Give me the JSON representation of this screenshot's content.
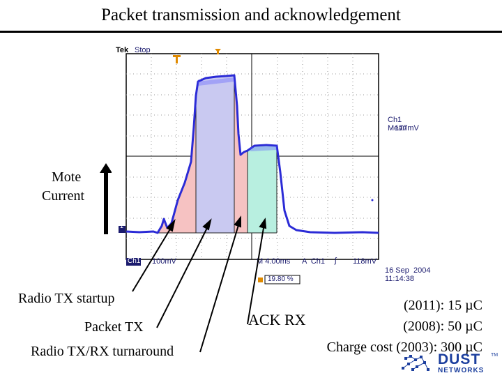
{
  "slide": {
    "title": "Packet transmission and acknowledgement",
    "axis_label_line1": "Mote",
    "axis_label_line2": "Current"
  },
  "scope": {
    "brand": "Tek",
    "state": "Stop",
    "ch1_mean_label": "Ch1 Mean",
    "ch1_mean_value": "177mV",
    "ch1_label": "Ch1",
    "volts_per_div": "100mV",
    "timebase": "M 4.00ms",
    "trigger_channel": "A  Ch1",
    "trigger_symbol": "ʃ",
    "trigger_level": "118mV",
    "trigger_position": "19.80 %",
    "date": "16 Sep  2004",
    "time": "11:14:38",
    "marker_1": "1",
    "colors": {
      "trace": "#2b2bd6",
      "startup": "#f6c2c2",
      "packet": "#c9c9f1",
      "turnaround": "#f6c2c2",
      "ack": "#b8efe0"
    }
  },
  "annotations": {
    "radio_tx_startup": "Radio TX startup",
    "packet_tx": "Packet TX",
    "turnaround": "Radio TX/RX turnaround",
    "ack_rx": "ACK RX",
    "charge_2011": "(2011): 15 µC",
    "charge_2008": "(2008): 50 µC",
    "charge_2003": "Charge cost (2003): 300 µC"
  },
  "logo": {
    "line1": "DUST",
    "line2": "NETWORKS",
    "tm": "TM",
    "color": "#1c3f9e"
  }
}
